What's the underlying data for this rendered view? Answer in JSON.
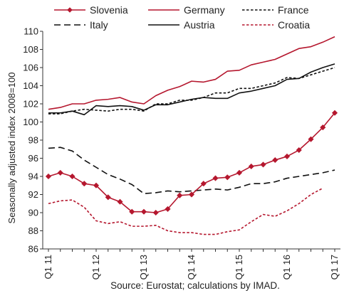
{
  "chart_data": {
    "type": "line",
    "ylabel": "Seasonally adjusted index 2008=100",
    "xlabel": "",
    "ylim": [
      86,
      110
    ],
    "y_ticks": [
      86,
      88,
      90,
      92,
      94,
      96,
      98,
      100,
      102,
      104,
      106,
      108,
      110
    ],
    "x_ticks": [
      {
        "label": "Q1 11",
        "at": 0
      },
      {
        "label": "Q1 12",
        "at": 4
      },
      {
        "label": "Q1 13",
        "at": 8
      },
      {
        "label": "Q1 14",
        "at": 12
      },
      {
        "label": "Q1 15",
        "at": 16
      },
      {
        "label": "Q1 16",
        "at": 20
      },
      {
        "label": "Q1 17",
        "at": 24
      }
    ],
    "x_tick_values": [
      0,
      1,
      2,
      3,
      4,
      5,
      6,
      7,
      8,
      9,
      10,
      11,
      12,
      13,
      14,
      15,
      16,
      17,
      18,
      19,
      20,
      21,
      22,
      23,
      24
    ],
    "grid": false,
    "legend_position": "top",
    "source": "Source: Eurostat; calculations by IMAD.",
    "series": [
      {
        "name": "Slovenia",
        "color": "#b5172e",
        "style": "solid",
        "marker": "diamond",
        "values": [
          94.0,
          94.4,
          94.0,
          93.2,
          93.0,
          91.7,
          91.2,
          90.1,
          90.1,
          90.0,
          90.4,
          91.9,
          92.0,
          93.2,
          93.8,
          93.9,
          94.4,
          95.1,
          95.3,
          95.8,
          96.2,
          96.9,
          98.1,
          99.4,
          101.0
        ]
      },
      {
        "name": "Germany",
        "color": "#b5172e",
        "style": "solid",
        "marker": "none",
        "values": [
          101.4,
          101.6,
          102.0,
          102.0,
          102.4,
          102.5,
          102.7,
          102.2,
          102.0,
          102.9,
          103.5,
          103.9,
          104.5,
          104.4,
          104.7,
          105.6,
          105.7,
          106.3,
          106.6,
          106.9,
          107.5,
          108.1,
          108.3,
          108.8,
          109.4
        ]
      },
      {
        "name": "France",
        "color": "#111111",
        "style": "dotted",
        "marker": "none",
        "values": [
          100.9,
          100.9,
          101.2,
          101.4,
          101.3,
          101.2,
          101.4,
          101.4,
          101.2,
          102.0,
          102.0,
          102.4,
          102.4,
          102.7,
          103.2,
          103.2,
          103.7,
          103.7,
          104.0,
          104.3,
          104.9,
          104.8,
          105.2,
          105.6,
          106.0
        ]
      },
      {
        "name": "Italy",
        "color": "#111111",
        "style": "dashed",
        "marker": "none",
        "values": [
          97.1,
          97.2,
          96.8,
          95.8,
          95.0,
          94.2,
          93.7,
          93.1,
          92.1,
          92.2,
          92.4,
          92.3,
          92.4,
          92.5,
          92.6,
          92.5,
          92.8,
          93.2,
          93.2,
          93.4,
          93.8,
          94.0,
          94.2,
          94.4,
          94.7
        ]
      },
      {
        "name": "Austria",
        "color": "#111111",
        "style": "solid",
        "marker": "none",
        "values": [
          101.0,
          101.0,
          101.2,
          100.8,
          101.8,
          101.7,
          101.8,
          101.7,
          101.3,
          101.9,
          101.9,
          102.2,
          102.5,
          102.7,
          102.6,
          102.6,
          103.2,
          103.4,
          103.7,
          104.0,
          104.7,
          104.8,
          105.5,
          106.0,
          106.4
        ]
      },
      {
        "name": "Croatia",
        "color": "#b5172e",
        "style": "dotted",
        "marker": "none",
        "values": [
          91.0,
          91.3,
          91.4,
          90.6,
          89.1,
          88.8,
          89.0,
          88.5,
          88.5,
          88.6,
          88.0,
          87.8,
          87.8,
          87.6,
          87.6,
          87.9,
          88.1,
          89.0,
          89.8,
          89.6,
          90.2,
          91.0,
          92.0,
          92.7,
          null
        ]
      }
    ]
  }
}
